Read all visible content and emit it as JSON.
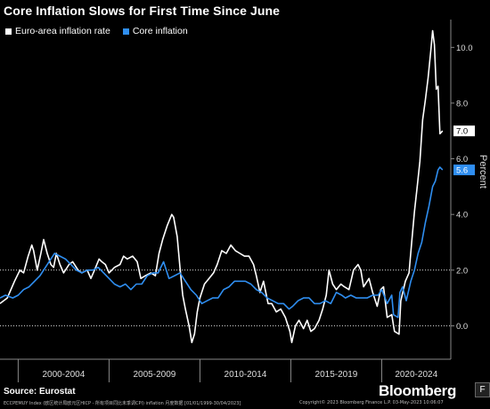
{
  "chart_data": {
    "type": "line",
    "title": "Core Inflation Slows for First Time Since June",
    "ylabel": "Percent",
    "ylim": [
      -1.2,
      11.0
    ],
    "xlim": [
      1999.0,
      2023.8
    ],
    "y_ticks": [
      0.0,
      2.0,
      4.0,
      6.0,
      8.0,
      10.0
    ],
    "y_tick_labels": [
      "0.0",
      "2.0",
      "4.0",
      "6.0",
      "8.0",
      "10.0"
    ],
    "reference_line": 2.0,
    "x_groups": [
      {
        "label": "2000-2004",
        "start": 2000.0,
        "end": 2005.0
      },
      {
        "label": "2005-2009",
        "start": 2005.0,
        "end": 2010.0
      },
      {
        "label": "2010-2014",
        "start": 2010.0,
        "end": 2015.0
      },
      {
        "label": "2015-2019",
        "start": 2015.0,
        "end": 2020.0
      },
      {
        "label": "2020-2024",
        "start": 2020.0,
        "end": 2025.0
      }
    ],
    "legend_position": "top-left",
    "grid": false,
    "series": [
      {
        "name": "Euro-area inflation rate",
        "color": "#ffffff",
        "last_value_label": "7.0",
        "points": [
          [
            1999.0,
            0.8
          ],
          [
            1999.4,
            1.0
          ],
          [
            1999.8,
            1.6
          ],
          [
            2000.1,
            2.0
          ],
          [
            2000.3,
            1.9
          ],
          [
            2000.55,
            2.5
          ],
          [
            2000.75,
            2.9
          ],
          [
            2000.85,
            2.7
          ],
          [
            2001.05,
            2.0
          ],
          [
            2001.25,
            2.6
          ],
          [
            2001.4,
            3.1
          ],
          [
            2001.6,
            2.6
          ],
          [
            2001.8,
            2.2
          ],
          [
            2001.95,
            2.1
          ],
          [
            2002.1,
            2.6
          ],
          [
            2002.3,
            2.2
          ],
          [
            2002.5,
            1.9
          ],
          [
            2002.8,
            2.2
          ],
          [
            2003.0,
            2.3
          ],
          [
            2003.3,
            2.0
          ],
          [
            2003.5,
            1.9
          ],
          [
            2003.8,
            2.0
          ],
          [
            2004.0,
            1.7
          ],
          [
            2004.2,
            2.0
          ],
          [
            2004.45,
            2.4
          ],
          [
            2004.6,
            2.3
          ],
          [
            2004.8,
            2.2
          ],
          [
            2005.0,
            1.9
          ],
          [
            2005.3,
            2.1
          ],
          [
            2005.6,
            2.2
          ],
          [
            2005.8,
            2.5
          ],
          [
            2006.0,
            2.4
          ],
          [
            2006.3,
            2.5
          ],
          [
            2006.55,
            2.3
          ],
          [
            2006.75,
            1.7
          ],
          [
            2007.0,
            1.8
          ],
          [
            2007.3,
            1.9
          ],
          [
            2007.55,
            1.8
          ],
          [
            2007.75,
            2.6
          ],
          [
            2007.95,
            3.1
          ],
          [
            2008.2,
            3.6
          ],
          [
            2008.45,
            4.0
          ],
          [
            2008.55,
            3.9
          ],
          [
            2008.75,
            3.2
          ],
          [
            2008.9,
            2.1
          ],
          [
            2009.05,
            1.1
          ],
          [
            2009.2,
            0.6
          ],
          [
            2009.4,
            0.0
          ],
          [
            2009.55,
            -0.6
          ],
          [
            2009.7,
            -0.3
          ],
          [
            2009.85,
            0.5
          ],
          [
            2010.0,
            1.0
          ],
          [
            2010.25,
            1.5
          ],
          [
            2010.5,
            1.7
          ],
          [
            2010.75,
            1.9
          ],
          [
            2010.95,
            2.2
          ],
          [
            2011.2,
            2.7
          ],
          [
            2011.45,
            2.6
          ],
          [
            2011.7,
            2.9
          ],
          [
            2011.95,
            2.7
          ],
          [
            2012.2,
            2.6
          ],
          [
            2012.45,
            2.5
          ],
          [
            2012.7,
            2.5
          ],
          [
            2012.95,
            2.2
          ],
          [
            2013.1,
            1.8
          ],
          [
            2013.3,
            1.2
          ],
          [
            2013.5,
            1.6
          ],
          [
            2013.75,
            0.8
          ],
          [
            2013.95,
            0.8
          ],
          [
            2014.2,
            0.5
          ],
          [
            2014.45,
            0.6
          ],
          [
            2014.7,
            0.3
          ],
          [
            2014.95,
            -0.2
          ],
          [
            2015.05,
            -0.6
          ],
          [
            2015.25,
            0.0
          ],
          [
            2015.45,
            0.2
          ],
          [
            2015.7,
            -0.1
          ],
          [
            2015.9,
            0.2
          ],
          [
            2016.1,
            -0.2
          ],
          [
            2016.3,
            -0.1
          ],
          [
            2016.55,
            0.2
          ],
          [
            2016.75,
            0.6
          ],
          [
            2016.95,
            1.1
          ],
          [
            2017.1,
            2.0
          ],
          [
            2017.3,
            1.5
          ],
          [
            2017.5,
            1.3
          ],
          [
            2017.75,
            1.5
          ],
          [
            2017.95,
            1.4
          ],
          [
            2018.2,
            1.3
          ],
          [
            2018.45,
            2.0
          ],
          [
            2018.7,
            2.2
          ],
          [
            2018.85,
            2.0
          ],
          [
            2019.0,
            1.4
          ],
          [
            2019.3,
            1.7
          ],
          [
            2019.5,
            1.2
          ],
          [
            2019.75,
            0.7
          ],
          [
            2019.95,
            1.3
          ],
          [
            2020.1,
            1.4
          ],
          [
            2020.3,
            0.3
          ],
          [
            2020.55,
            0.4
          ],
          [
            2020.7,
            -0.2
          ],
          [
            2020.95,
            -0.3
          ],
          [
            2021.05,
            0.9
          ],
          [
            2021.3,
            1.6
          ],
          [
            2021.5,
            1.9
          ],
          [
            2021.65,
            3.0
          ],
          [
            2021.8,
            4.1
          ],
          [
            2021.95,
            5.0
          ],
          [
            2022.1,
            5.9
          ],
          [
            2022.25,
            7.4
          ],
          [
            2022.4,
            8.1
          ],
          [
            2022.55,
            8.9
          ],
          [
            2022.7,
            9.9
          ],
          [
            2022.8,
            10.6
          ],
          [
            2022.9,
            10.1
          ],
          [
            2023.0,
            8.5
          ],
          [
            2023.1,
            8.6
          ],
          [
            2023.2,
            6.9
          ],
          [
            2023.35,
            7.0
          ]
        ]
      },
      {
        "name": "Core inflation",
        "color": "#2f8ef0",
        "last_value_label": "5.6",
        "points": [
          [
            1999.0,
            1.0
          ],
          [
            1999.3,
            1.1
          ],
          [
            1999.7,
            1.0
          ],
          [
            2000.0,
            1.1
          ],
          [
            2000.3,
            1.3
          ],
          [
            2000.6,
            1.4
          ],
          [
            2000.9,
            1.6
          ],
          [
            2001.2,
            1.8
          ],
          [
            2001.5,
            2.1
          ],
          [
            2001.8,
            2.4
          ],
          [
            2002.0,
            2.6
          ],
          [
            2002.3,
            2.5
          ],
          [
            2002.6,
            2.4
          ],
          [
            2002.9,
            2.2
          ],
          [
            2003.2,
            2.0
          ],
          [
            2003.5,
            1.9
          ],
          [
            2003.8,
            2.0
          ],
          [
            2004.1,
            2.0
          ],
          [
            2004.4,
            2.1
          ],
          [
            2004.7,
            1.9
          ],
          [
            2005.0,
            1.7
          ],
          [
            2005.3,
            1.5
          ],
          [
            2005.6,
            1.4
          ],
          [
            2005.9,
            1.5
          ],
          [
            2006.2,
            1.3
          ],
          [
            2006.5,
            1.5
          ],
          [
            2006.8,
            1.5
          ],
          [
            2007.1,
            1.8
          ],
          [
            2007.4,
            1.9
          ],
          [
            2007.7,
            1.9
          ],
          [
            2008.0,
            2.3
          ],
          [
            2008.3,
            1.7
          ],
          [
            2008.6,
            1.8
          ],
          [
            2008.9,
            1.9
          ],
          [
            2009.2,
            1.6
          ],
          [
            2009.5,
            1.3
          ],
          [
            2009.8,
            1.1
          ],
          [
            2010.1,
            0.8
          ],
          [
            2010.4,
            0.9
          ],
          [
            2010.7,
            1.0
          ],
          [
            2011.0,
            1.0
          ],
          [
            2011.3,
            1.3
          ],
          [
            2011.6,
            1.4
          ],
          [
            2011.9,
            1.6
          ],
          [
            2012.2,
            1.6
          ],
          [
            2012.5,
            1.6
          ],
          [
            2012.8,
            1.5
          ],
          [
            2013.1,
            1.3
          ],
          [
            2013.4,
            1.2
          ],
          [
            2013.7,
            1.0
          ],
          [
            2014.0,
            0.9
          ],
          [
            2014.3,
            0.8
          ],
          [
            2014.6,
            0.8
          ],
          [
            2014.9,
            0.6
          ],
          [
            2015.1,
            0.7
          ],
          [
            2015.4,
            0.9
          ],
          [
            2015.7,
            1.0
          ],
          [
            2016.0,
            1.0
          ],
          [
            2016.3,
            0.8
          ],
          [
            2016.6,
            0.8
          ],
          [
            2016.9,
            0.9
          ],
          [
            2017.2,
            0.8
          ],
          [
            2017.5,
            1.2
          ],
          [
            2017.8,
            1.1
          ],
          [
            2018.0,
            1.0
          ],
          [
            2018.3,
            1.1
          ],
          [
            2018.6,
            1.0
          ],
          [
            2018.9,
            1.0
          ],
          [
            2019.2,
            1.0
          ],
          [
            2019.5,
            1.1
          ],
          [
            2019.8,
            1.1
          ],
          [
            2020.0,
            1.3
          ],
          [
            2020.3,
            0.8
          ],
          [
            2020.55,
            1.1
          ],
          [
            2020.65,
            0.4
          ],
          [
            2020.9,
            0.3
          ],
          [
            2021.0,
            1.2
          ],
          [
            2021.15,
            1.4
          ],
          [
            2021.35,
            0.9
          ],
          [
            2021.6,
            1.6
          ],
          [
            2021.8,
            2.0
          ],
          [
            2022.0,
            2.6
          ],
          [
            2022.2,
            3.0
          ],
          [
            2022.4,
            3.7
          ],
          [
            2022.6,
            4.3
          ],
          [
            2022.8,
            5.0
          ],
          [
            2022.95,
            5.2
          ],
          [
            2023.1,
            5.6
          ],
          [
            2023.2,
            5.7
          ],
          [
            2023.35,
            5.6
          ]
        ]
      }
    ]
  },
  "footer": {
    "source": "Source: Eurostat",
    "brand": "Bloomberg",
    "badge": "F",
    "fine_left": "ECCPEMUY Index (欧区统计局欧元区HICP - 所有项目同比未季调CPI) inflation  月度数据  [01/01/1999-30/04/2023]",
    "fine_right": "Copyright© 2023 Bloomberg Finance L.P.      03-May-2023 10:06:07"
  }
}
